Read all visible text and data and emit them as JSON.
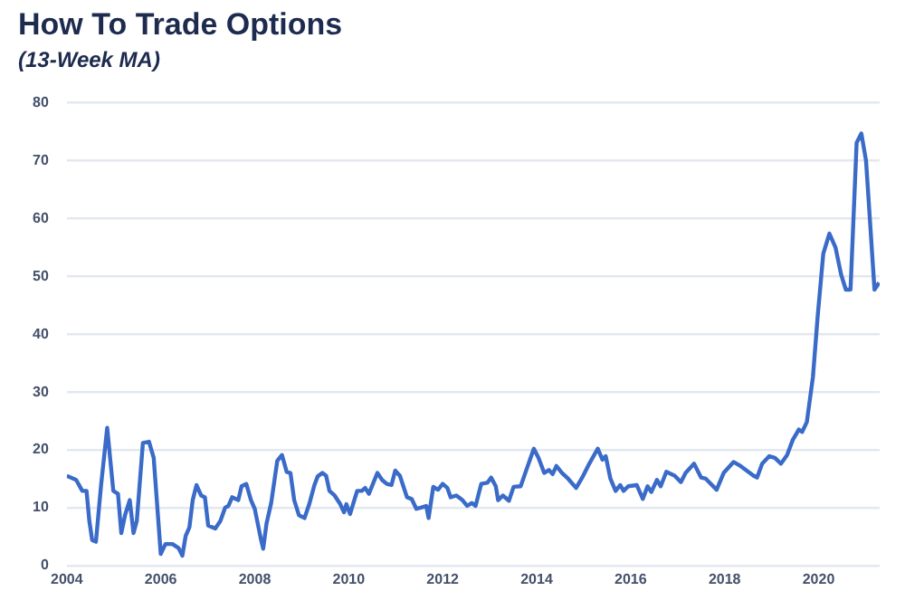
{
  "chart_data": {
    "type": "line",
    "title": "How To Trade Options",
    "subtitle": "(13-Week MA)",
    "x": [
      2004.0,
      2004.2,
      2004.33,
      2004.42,
      2004.48,
      2004.54,
      2004.62,
      2004.73,
      2004.86,
      2004.99,
      2005.09,
      2005.16,
      2005.24,
      2005.34,
      2005.42,
      2005.49,
      2005.62,
      2005.75,
      2005.85,
      2006.0,
      2006.1,
      2006.25,
      2006.38,
      2006.46,
      2006.53,
      2006.61,
      2006.68,
      2006.76,
      2006.86,
      2006.94,
      2007.01,
      2007.16,
      2007.27,
      2007.37,
      2007.44,
      2007.52,
      2007.65,
      2007.72,
      2007.82,
      2007.92,
      2008.0,
      2008.13,
      2008.18,
      2008.25,
      2008.35,
      2008.48,
      2008.58,
      2008.68,
      2008.76,
      2008.84,
      2008.94,
      2009.06,
      2009.16,
      2009.27,
      2009.34,
      2009.44,
      2009.52,
      2009.59,
      2009.7,
      2009.82,
      2009.9,
      2009.95,
      2010.03,
      2010.1,
      2010.18,
      2010.28,
      2010.35,
      2010.43,
      2010.53,
      2010.61,
      2010.71,
      2010.81,
      2010.91,
      2010.99,
      2011.09,
      2011.24,
      2011.34,
      2011.44,
      2011.54,
      2011.65,
      2011.7,
      2011.8,
      2011.9,
      2012.0,
      2012.1,
      2012.17,
      2012.29,
      2012.42,
      2012.52,
      2012.62,
      2012.7,
      2012.82,
      2012.95,
      2013.03,
      2013.13,
      2013.18,
      2013.28,
      2013.41,
      2013.51,
      2013.66,
      2013.81,
      2013.94,
      2014.04,
      2014.16,
      2014.26,
      2014.34,
      2014.42,
      2014.54,
      2014.67,
      2014.84,
      2014.97,
      2015.12,
      2015.3,
      2015.4,
      2015.47,
      2015.57,
      2015.68,
      2015.78,
      2015.85,
      2015.95,
      2016.13,
      2016.26,
      2016.36,
      2016.44,
      2016.56,
      2016.64,
      2016.76,
      2016.94,
      2017.07,
      2017.17,
      2017.35,
      2017.5,
      2017.6,
      2017.83,
      2017.98,
      2018.19,
      2018.34,
      2018.47,
      2018.62,
      2018.69,
      2018.8,
      2018.95,
      2019.07,
      2019.2,
      2019.33,
      2019.45,
      2019.58,
      2019.65,
      2019.75,
      2019.88,
      2019.98,
      2020.1,
      2020.23,
      2020.36,
      2020.48,
      2020.58,
      2020.68,
      2020.81,
      2020.91,
      2021.01,
      2021.19,
      2021.29
    ],
    "series": [
      {
        "color": "#3a6bc8",
        "values": [
          15.5,
          14.8,
          12.9,
          12.9,
          7.7,
          4.4,
          4.1,
          13.9,
          23.8,
          12.9,
          12.4,
          5.6,
          8.7,
          11.3,
          5.6,
          7.7,
          21.2,
          21.4,
          18.6,
          2.0,
          3.7,
          3.7,
          3.0,
          1.7,
          5.1,
          6.6,
          11.3,
          13.9,
          12.1,
          11.8,
          6.9,
          6.4,
          7.7,
          10.0,
          10.3,
          11.8,
          11.3,
          13.7,
          14.1,
          11.3,
          9.8,
          4.6,
          2.9,
          7.2,
          10.8,
          18.1,
          19.1,
          16.2,
          16.0,
          11.3,
          8.7,
          8.2,
          10.6,
          13.9,
          15.4,
          16.0,
          15.5,
          12.9,
          12.1,
          10.6,
          9.2,
          10.6,
          8.9,
          10.8,
          12.9,
          12.9,
          13.4,
          12.4,
          14.4,
          16.0,
          14.8,
          14.1,
          13.9,
          16.4,
          15.5,
          11.8,
          11.5,
          9.8,
          10.0,
          10.3,
          8.2,
          13.6,
          13.1,
          14.1,
          13.4,
          11.8,
          12.1,
          11.3,
          10.3,
          10.8,
          10.3,
          14.1,
          14.3,
          15.2,
          13.7,
          11.3,
          12.1,
          11.2,
          13.6,
          13.7,
          17.2,
          20.2,
          18.6,
          16.0,
          16.5,
          15.8,
          17.2,
          16.0,
          15.0,
          13.4,
          15.2,
          17.6,
          20.2,
          18.3,
          18.9,
          15.0,
          12.9,
          13.9,
          12.9,
          13.7,
          13.9,
          11.5,
          13.7,
          12.7,
          14.8,
          13.7,
          16.2,
          15.5,
          14.4,
          16.0,
          17.6,
          15.2,
          15.0,
          13.1,
          16.0,
          17.9,
          17.2,
          16.4,
          15.5,
          15.2,
          17.6,
          18.9,
          18.6,
          17.6,
          19.1,
          21.7,
          23.5,
          23.1,
          24.8,
          32.6,
          43.0,
          53.9,
          57.4,
          55.0,
          50.3,
          47.7,
          47.7,
          73.1,
          74.7,
          70.0,
          47.7,
          48.9
        ]
      }
    ],
    "xlim": [
      2004,
      2021.3
    ],
    "xticks": [
      2004,
      2006,
      2008,
      2010,
      2012,
      2014,
      2016,
      2018,
      2020
    ],
    "ylim": [
      0,
      80
    ],
    "yticks": [
      0,
      10,
      20,
      30,
      40,
      50,
      60,
      70,
      80
    ],
    "grid": "y",
    "legend": false,
    "marker": "none",
    "line_style": "solid"
  }
}
